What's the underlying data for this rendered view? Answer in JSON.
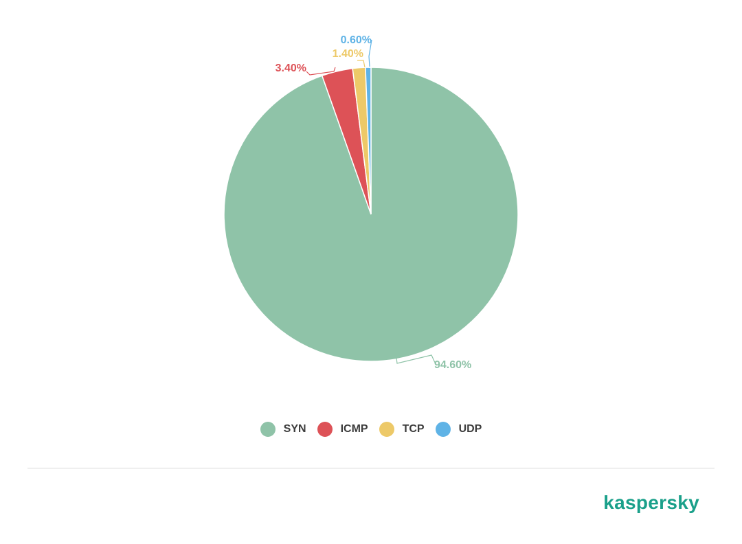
{
  "chart_data": {
    "type": "pie",
    "categories": [
      "SYN",
      "ICMP",
      "TCP",
      "UDP"
    ],
    "values": [
      94.6,
      3.4,
      1.4,
      0.6
    ],
    "data_labels": [
      "94.60%",
      "3.40%",
      "1.40%",
      "0.60%"
    ],
    "colors": [
      "#8fc3a8",
      "#dd5257",
      "#edc968",
      "#5fb3e6"
    ],
    "label_colors": [
      "#8fc3a8",
      "#dd5257",
      "#edc968",
      "#5fb3e6"
    ],
    "start_angle": "12 o'clock",
    "direction": "clockwise",
    "legend": {
      "position": "bottom-center",
      "items": [
        {
          "label": "SYN",
          "color": "#8fc3a8"
        },
        {
          "label": "ICMP",
          "color": "#dd5257"
        },
        {
          "label": "TCP",
          "color": "#edc968"
        },
        {
          "label": "UDP",
          "color": "#5fb3e6"
        }
      ]
    }
  },
  "brand": {
    "logo_text": "kaspersky",
    "color": "#1aa08a"
  }
}
